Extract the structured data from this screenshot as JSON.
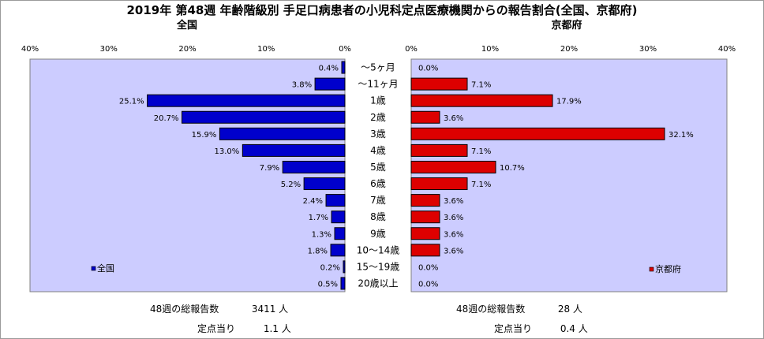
{
  "chart_data": {
    "type": "bar",
    "title": "2019年 第48週 年齢階級別 手足口病患者の小児科定点医療機関からの報告割合(全国、京都府)",
    "categories": [
      "～5ヶ月",
      "～11ヶ月",
      "1歳",
      "2歳",
      "3歳",
      "4歳",
      "5歳",
      "6歳",
      "7歳",
      "8歳",
      "9歳",
      "10～14歳",
      "15～19歳",
      "20歳以上"
    ],
    "xlim": [
      0,
      40
    ],
    "ticks": [
      "40%",
      "30%",
      "20%",
      "10%",
      "0%"
    ],
    "ticks_right": [
      "0%",
      "10%",
      "20%",
      "30%",
      "40%"
    ],
    "series": [
      {
        "name": "全国",
        "panel_title": "全国",
        "color": "#0000cc",
        "values": [
          0.4,
          3.8,
          25.1,
          20.7,
          15.9,
          13.0,
          7.9,
          5.2,
          2.4,
          1.7,
          1.3,
          1.8,
          0.2,
          0.5
        ],
        "labels": [
          "0.4%",
          "3.8%",
          "25.1%",
          "20.7%",
          "15.9%",
          "13.0%",
          "7.9%",
          "5.2%",
          "2.4%",
          "1.7%",
          "1.3%",
          "1.8%",
          "0.2%",
          "0.5%"
        ]
      },
      {
        "name": "京都府",
        "panel_title": "京都府",
        "color": "#dd0000",
        "values": [
          0.0,
          7.1,
          17.9,
          3.6,
          32.1,
          7.1,
          10.7,
          7.1,
          3.6,
          3.6,
          3.6,
          3.6,
          0.0,
          0.0
        ],
        "labels": [
          "0.0%",
          "7.1%",
          "17.9%",
          "3.6%",
          "32.1%",
          "7.1%",
          "10.7%",
          "7.1%",
          "3.6%",
          "3.6%",
          "3.6%",
          "3.6%",
          "0.0%",
          "0.0%"
        ]
      }
    ],
    "plot_background": "#ccccff",
    "legend_position": "bottom-left inside each panel"
  },
  "summary": {
    "national": {
      "total_label": "48週の総報告数",
      "total_value": "3411 人",
      "per_site_label": "定点当り",
      "per_site_value": "1.1 人"
    },
    "kyoto": {
      "total_label": "48週の総報告数",
      "total_value": "28 人",
      "per_site_label": "定点当り",
      "per_site_value": "0.4 人"
    }
  }
}
